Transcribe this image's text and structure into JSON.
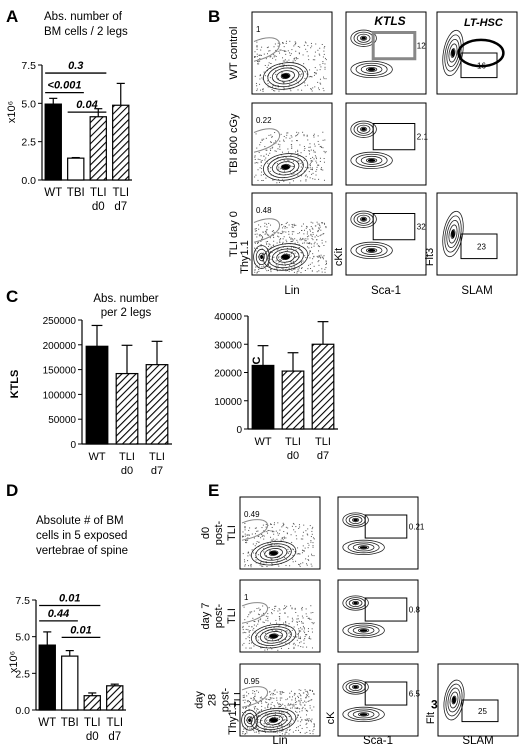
{
  "panels": {
    "A": {
      "letter": "A",
      "title": [
        "Abs. number of",
        "BM cells / 2 legs"
      ],
      "ylabel": "x10⁶",
      "chart_data": {
        "type": "bar",
        "categories": [
          "WT",
          "TBI",
          "TLI d0",
          "TLI d7"
        ],
        "category_lines": [
          [
            "WT"
          ],
          [
            "TBI"
          ],
          [
            "TLI",
            "d0"
          ],
          [
            "TLI",
            "d7"
          ]
        ],
        "values": [
          6.6,
          1.9,
          5.5,
          6.5
        ],
        "errors": [
          0.5,
          0.05,
          0.7,
          1.9
        ],
        "fills": [
          "solid",
          "open",
          "hatch",
          "hatch"
        ],
        "yticks": [
          "0.0",
          "2.5",
          "5.0",
          "7.5"
        ],
        "ylim": [
          0,
          10
        ],
        "significance": [
          {
            "label": "0.3",
            "from": 0,
            "to": 2,
            "y": 9.3
          },
          {
            "label": "<0.001",
            "from": 0,
            "to": 1,
            "y": 7.6
          },
          {
            "label": "0.04",
            "from": 1,
            "to": 2,
            "y": 5.9
          }
        ]
      }
    },
    "B": {
      "letter": "B",
      "rows": [
        {
          "label": [
            "WT control"
          ],
          "plots": [
            {
              "kind": "lin",
              "values": [
                "1"
              ]
            },
            {
              "kind": "sca",
              "values": [
                "12"
              ],
              "gate_label": "KTLS"
            },
            {
              "kind": "slam",
              "values": [
                "16"
              ],
              "gate_label": "LT-HSC"
            }
          ]
        },
        {
          "label": [
            "TBI 800 cGy"
          ],
          "plots": [
            {
              "kind": "lin",
              "values": [
                "0.22"
              ]
            },
            {
              "kind": "sca",
              "values": [
                "2.1"
              ]
            }
          ]
        },
        {
          "label": [
            "TLI day 0"
          ],
          "plots": [
            {
              "kind": "lin",
              "values": [
                "0.48"
              ],
              "yaxis": "Thy1.1"
            },
            {
              "kind": "sca",
              "values": [
                "32"
              ],
              "yaxis": "cKit"
            },
            {
              "kind": "slam",
              "values": [
                "23"
              ],
              "yaxis": "Flt3"
            }
          ]
        }
      ],
      "xaxis": [
        "Lin",
        "Sca-1",
        "SLAM"
      ]
    },
    "C": {
      "letter": "C",
      "title": [
        "Abs. number",
        "per 2 legs"
      ],
      "charts": [
        {
          "type": "bar",
          "ylabel": "KTLS",
          "categories": [
            "WT",
            "TLI d0",
            "TLI d7"
          ],
          "category_lines": [
            [
              "WT"
            ],
            [
              "TLI",
              "d0"
            ],
            [
              "TLI",
              "d7"
            ]
          ],
          "values": [
            197000,
            142000,
            160000
          ],
          "errors": [
            42000,
            57000,
            47000
          ],
          "fills": [
            "solid",
            "hatch",
            "hatch"
          ],
          "yticks": [
            "0",
            "50000",
            "100000",
            "150000",
            "200000",
            "250000"
          ],
          "ylim": [
            0,
            250000
          ]
        },
        {
          "type": "bar",
          "ylabel": "LT-HSC",
          "categories": [
            "WT",
            "TLI d0",
            "TLI d7"
          ],
          "category_lines": [
            [
              "WT"
            ],
            [
              "TLI",
              "d0"
            ],
            [
              "TLI",
              "d7"
            ]
          ],
          "values": [
            22500,
            20500,
            30000
          ],
          "errors": [
            7000,
            6500,
            8000
          ],
          "fills": [
            "solid",
            "hatch",
            "hatch"
          ],
          "yticks": [
            "0",
            "10000",
            "20000",
            "30000",
            "40000"
          ],
          "ylim": [
            0,
            40000
          ]
        }
      ]
    },
    "D": {
      "letter": "D",
      "title": [
        "Absolute # of BM",
        "cells in 5 exposed",
        "vertebrae of spine"
      ],
      "ylabel": "x10⁶",
      "chart_data": {
        "type": "bar",
        "categories": [
          "WT",
          "TBI",
          "TLI d0",
          "TLI d7"
        ],
        "category_lines": [
          [
            "WT"
          ],
          [
            "TBI"
          ],
          [
            "TLI",
            "d0"
          ],
          [
            "TLI",
            "d7"
          ]
        ],
        "values": [
          5.9,
          4.9,
          1.3,
          2.2
        ],
        "errors": [
          1.2,
          0.5,
          0.25,
          0.15
        ],
        "fills": [
          "solid",
          "open",
          "hatch",
          "hatch"
        ],
        "yticks": [
          "0.0",
          "2.5",
          "5.0",
          "7.5"
        ],
        "ylim": [
          0,
          10
        ],
        "significance": [
          {
            "label": "0.01",
            "from": 0,
            "to": 2,
            "y": 9.5
          },
          {
            "label": "0.44",
            "from": 0,
            "to": 1,
            "y": 8.1
          },
          {
            "label": "0.01",
            "from": 1,
            "to": 2,
            "y": 6.6
          }
        ]
      }
    },
    "E": {
      "letter": "E",
      "rows": [
        {
          "label": [
            "d0",
            "post-",
            "TLI"
          ],
          "plots": [
            {
              "kind": "lin",
              "values": [
                "0.49"
              ]
            },
            {
              "kind": "sca",
              "values": [
                "0.21"
              ]
            }
          ]
        },
        {
          "label": [
            "day 7",
            "post-",
            "TLI"
          ],
          "plots": [
            {
              "kind": "lin",
              "values": [
                "1"
              ]
            },
            {
              "kind": "sca",
              "values": [
                "0.8"
              ]
            }
          ]
        },
        {
          "label": [
            "day",
            "28",
            "post-",
            "TLI"
          ],
          "plots": [
            {
              "kind": "lin",
              "values": [
                "0.95"
              ],
              "yaxis": "Thy1.1"
            },
            {
              "kind": "sca",
              "values": [
                "6.5"
              ],
              "yaxis": "cK"
            },
            {
              "kind": "slam",
              "values": [
                "25",
                "3"
              ],
              "yaxis": "Flt"
            }
          ]
        }
      ],
      "xaxis": [
        "Lin",
        "Sca-1",
        "SLAM"
      ]
    }
  }
}
